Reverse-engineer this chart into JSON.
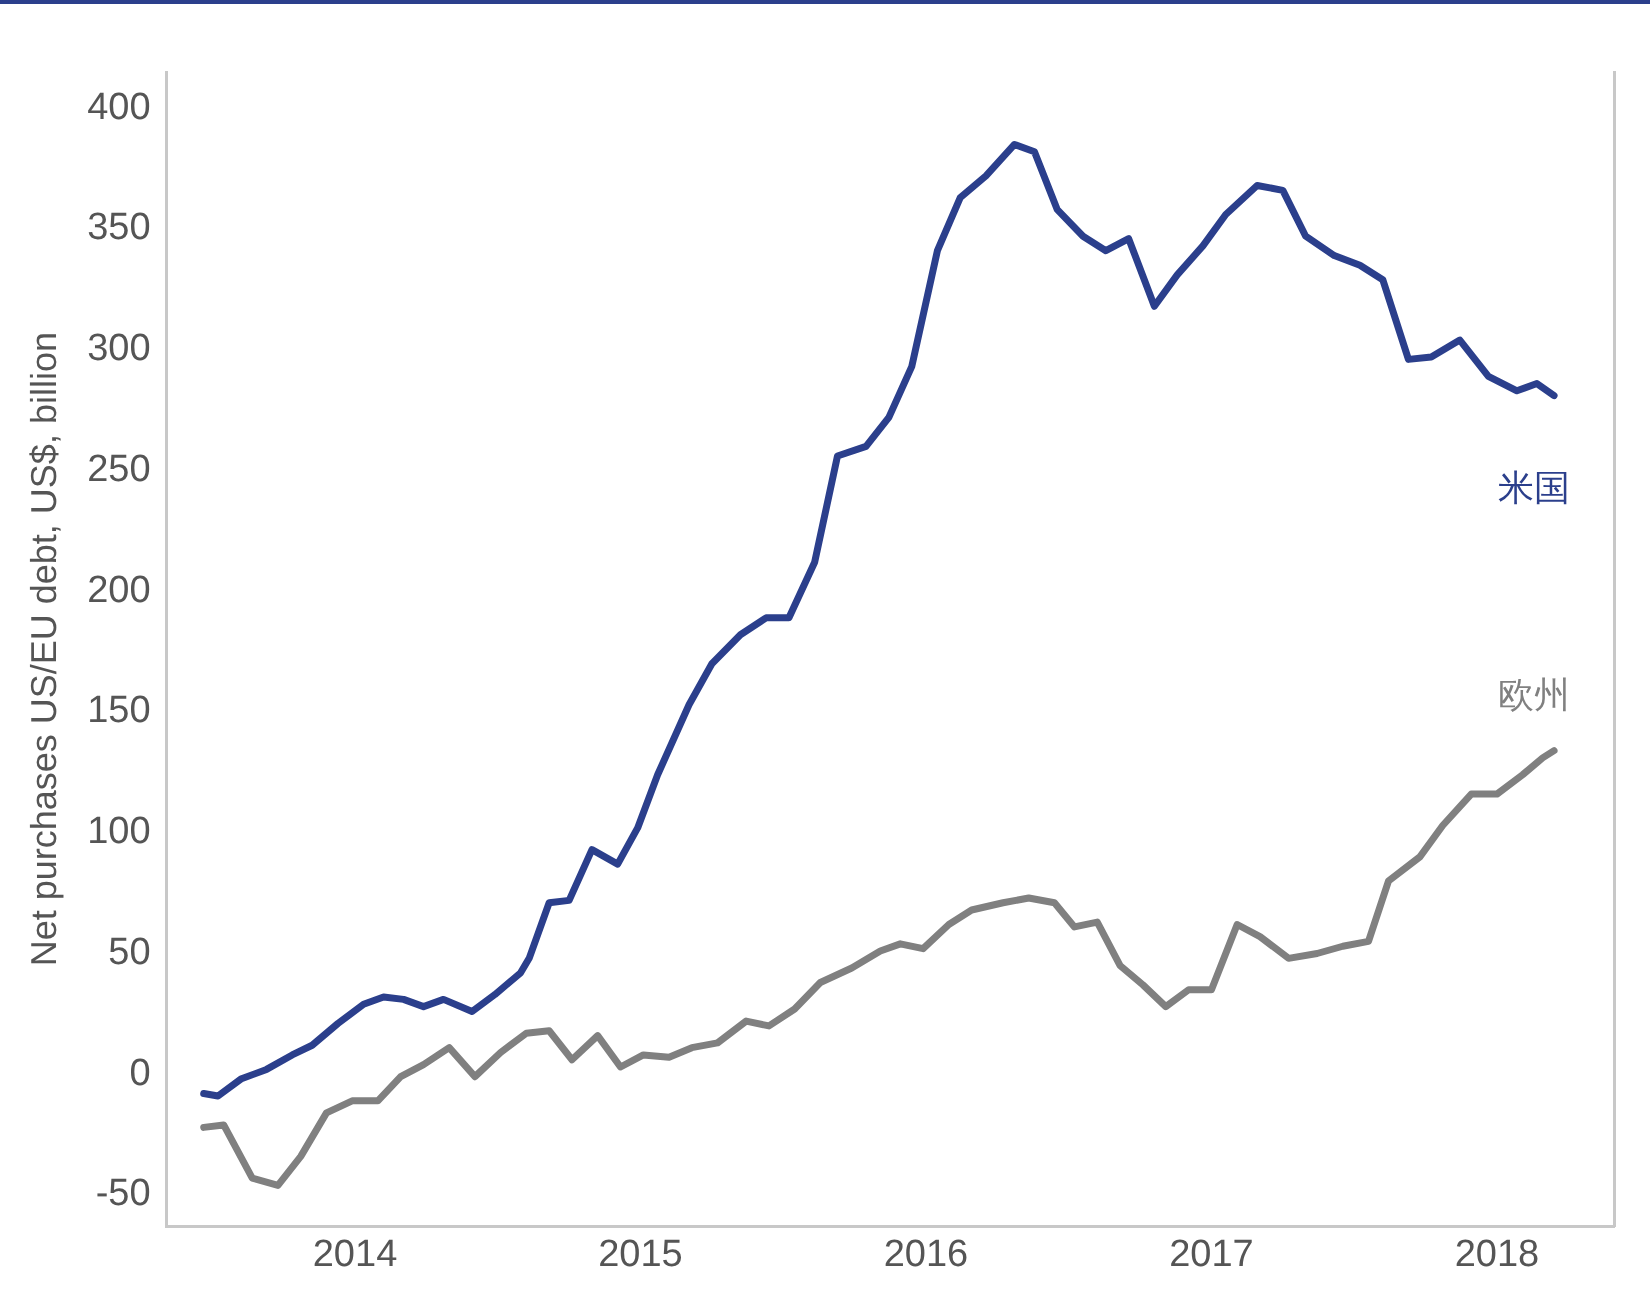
{
  "chart_data": {
    "type": "line",
    "ylabel": "Net purchases US/EU debt, US$, billion",
    "xlim": [
      2013.34,
      2018.41
    ],
    "xticks": [
      2014,
      2015,
      2016,
      2017,
      2018
    ],
    "ylim": [
      -63,
      415
    ],
    "yticks": [
      -50,
      0,
      50,
      100,
      150,
      200,
      250,
      300,
      350,
      400
    ],
    "grid": false,
    "legend": false,
    "marker": "none",
    "line_style": "solid",
    "series": [
      {
        "name": "米国",
        "color": "#2b3f8c",
        "x": [
          2013.47,
          2013.52,
          2013.6,
          2013.69,
          2013.78,
          2013.85,
          2013.94,
          2014.03,
          2014.1,
          2014.17,
          2014.24,
          2014.31,
          2014.41,
          2014.49,
          2014.58,
          2014.61,
          2014.68,
          2014.75,
          2014.83,
          2014.92,
          2014.99,
          2015.06,
          2015.17,
          2015.25,
          2015.35,
          2015.44,
          2015.52,
          2015.61,
          2015.69,
          2015.79,
          2015.87,
          2015.95,
          2016.04,
          2016.12,
          2016.21,
          2016.31,
          2016.38,
          2016.46,
          2016.55,
          2016.63,
          2016.71,
          2016.8,
          2016.88,
          2016.97,
          2017.05,
          2017.16,
          2017.25,
          2017.33,
          2017.43,
          2017.52,
          2017.6,
          2017.69,
          2017.77,
          2017.87,
          2017.97,
          2018.07,
          2018.14,
          2018.2
        ],
        "values": [
          -8,
          -9,
          -2,
          2,
          8,
          12,
          21,
          29,
          32,
          31,
          28,
          31,
          26,
          33,
          42,
          48,
          71,
          72,
          93,
          87,
          102,
          124,
          153,
          170,
          182,
          189,
          189,
          212,
          256,
          260,
          272,
          293,
          341,
          363,
          372,
          385,
          382,
          358,
          347,
          341,
          346,
          318,
          331,
          343,
          356,
          368,
          366,
          347,
          339,
          335,
          329,
          296,
          297,
          304,
          289,
          283,
          286,
          281
        ]
      },
      {
        "name": "欧州",
        "color": "#808080",
        "x": [
          2013.47,
          2013.54,
          2013.64,
          2013.73,
          2013.81,
          2013.9,
          2013.99,
          2014.08,
          2014.16,
          2014.24,
          2014.33,
          2014.42,
          2014.51,
          2014.6,
          2014.68,
          2014.76,
          2014.85,
          2014.93,
          2015.01,
          2015.1,
          2015.18,
          2015.27,
          2015.37,
          2015.45,
          2015.54,
          2015.63,
          2015.74,
          2015.84,
          2015.91,
          2015.99,
          2016.08,
          2016.16,
          2016.27,
          2016.36,
          2016.45,
          2016.52,
          2016.6,
          2016.68,
          2016.76,
          2016.84,
          2016.92,
          2017.0,
          2017.09,
          2017.17,
          2017.27,
          2017.37,
          2017.46,
          2017.55,
          2017.62,
          2017.73,
          2017.81,
          2017.91,
          2018.0,
          2018.09,
          2018.16,
          2018.2
        ],
        "values": [
          -22,
          -21,
          -43,
          -46,
          -34,
          -16,
          -11,
          -11,
          -1,
          4,
          11,
          -1,
          9,
          17,
          18,
          6,
          16,
          3,
          8,
          7,
          11,
          13,
          22,
          20,
          27,
          38,
          44,
          51,
          54,
          52,
          62,
          68,
          71,
          73,
          71,
          61,
          63,
          45,
          37,
          28,
          35,
          35,
          62,
          57,
          48,
          50,
          53,
          55,
          80,
          90,
          103,
          116,
          116,
          124,
          131,
          134
        ]
      }
    ]
  }
}
